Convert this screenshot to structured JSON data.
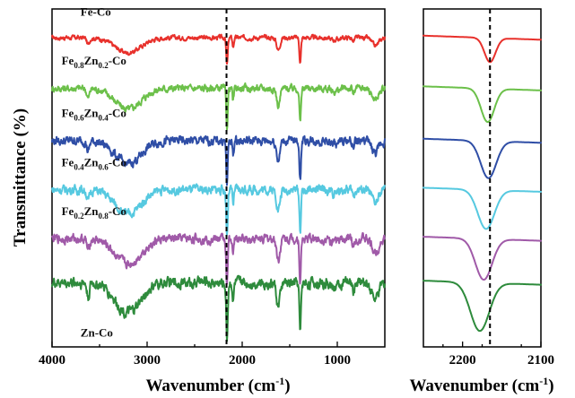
{
  "chart_data": [
    {
      "type": "line",
      "xlabel": "Wavenumber (cm",
      "xlabel_sup": "-1",
      "xlabel_close": ")",
      "ylabel": "Transmittance (%)",
      "xlim": [
        4000,
        500
      ],
      "xticks": [
        4000,
        3000,
        2000,
        1000
      ],
      "xtick_labels": [
        "4000",
        "3000",
        "2000",
        "1000"
      ],
      "reference_line_x": 2165,
      "series": [
        {
          "id": "fe-co",
          "color": "#e8312c",
          "label_parts": [
            "Fe-Co"
          ],
          "label_subs": [],
          "offset": 0.915,
          "amp": 0.13,
          "noise": 0.005,
          "label_x": 3700,
          "label_dy": 0.065
        },
        {
          "id": "fe08",
          "color": "#6cc04a",
          "label_parts": [
            "Fe",
            "0.8",
            "Zn",
            "0.2",
            "-Co"
          ],
          "offset": 0.765,
          "amp": 0.18,
          "noise": 0.008,
          "label_x": 3900,
          "label_dy": 0.07
        },
        {
          "id": "fe06",
          "color": "#2f4ea6",
          "label_parts": [
            "Fe",
            "0.6",
            "Zn",
            "0.4",
            "-Co"
          ],
          "offset": 0.61,
          "amp": 0.2,
          "noise": 0.01,
          "label_x": 3900,
          "label_dy": 0.07
        },
        {
          "id": "fe04",
          "color": "#56c9e0",
          "label_parts": [
            "Fe",
            "0.4",
            "Zn",
            "0.6",
            "-Co"
          ],
          "offset": 0.465,
          "amp": 0.21,
          "noise": 0.01,
          "label_x": 3900,
          "label_dy": 0.07
        },
        {
          "id": "fe02",
          "color": "#a05aa8",
          "label_parts": [
            "Fe",
            "0.2",
            "Zn",
            "0.8",
            "-Co"
          ],
          "offset": 0.32,
          "amp": 0.22,
          "noise": 0.01,
          "label_x": 3900,
          "label_dy": 0.07
        },
        {
          "id": "zn-co",
          "color": "#2e8b3c",
          "label_parts": [
            "Zn-Co"
          ],
          "offset": 0.19,
          "amp": 0.26,
          "noise": 0.012,
          "label_x": 3700,
          "label_dy": -0.16
        }
      ],
      "bands": [
        {
          "center": 3620,
          "width": 20,
          "depth": 0.25,
          "note": "sharp OH"
        },
        {
          "center": 3200,
          "width": 190,
          "depth": 0.55
        },
        {
          "center": 2160,
          "width": 12,
          "depth": 1.0
        },
        {
          "center": 2095,
          "width": 10,
          "depth": 0.35
        },
        {
          "center": 1620,
          "width": 25,
          "depth": 0.45
        },
        {
          "center": 1390,
          "width": 12,
          "depth": 0.9
        },
        {
          "center": 1030,
          "width": 60,
          "depth": 0.08
        },
        {
          "center": 830,
          "width": 15,
          "depth": 0.15
        },
        {
          "center": 600,
          "width": 50,
          "depth": 0.3
        }
      ]
    },
    {
      "type": "line",
      "xlabel": "Wavenumber (cm",
      "xlabel_sup": "-1",
      "xlabel_close": ")",
      "xlim": [
        2250,
        2100
      ],
      "xticks": [
        2200,
        2100
      ],
      "xtick_labels": [
        "2200",
        "2100"
      ],
      "reference_line_x": 2165,
      "series_centers": [
        2165,
        2168,
        2167,
        2170,
        2173,
        2178
      ],
      "series_widths": [
        10,
        12,
        14,
        15,
        15,
        17
      ]
    }
  ]
}
